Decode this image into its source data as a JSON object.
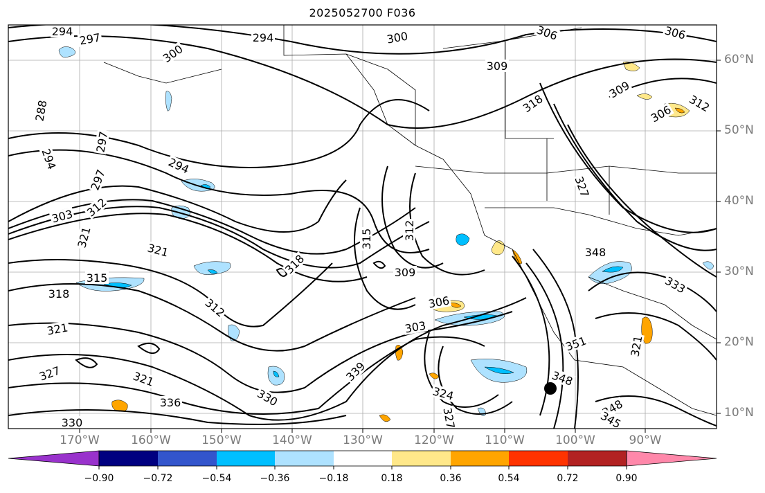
{
  "title": "2025052700 F036",
  "map": {
    "lat_labels": [
      "60°N",
      "50°N",
      "40°N",
      "30°N",
      "20°N",
      "10°N"
    ],
    "lon_labels": [
      "170°W",
      "160°W",
      "150°W",
      "140°W",
      "130°W",
      "120°W",
      "110°W",
      "100°W",
      "90°W"
    ],
    "contour_labels": [
      "294",
      "297",
      "300",
      "294",
      "300",
      "306",
      "306",
      "309",
      "309",
      "306",
      "318",
      "288",
      "294",
      "297",
      "294",
      "297",
      "303",
      "312",
      "321",
      "321",
      "318",
      "315",
      "312",
      "309",
      "306",
      "303",
      "312",
      "315",
      "318",
      "321",
      "321",
      "327",
      "336",
      "330",
      "339",
      "324",
      "327",
      "348",
      "351",
      "348",
      "345",
      "348",
      "333",
      "330",
      "321",
      "327",
      "312",
      "318"
    ]
  },
  "colorbar": {
    "colors": [
      "#9932cc",
      "#000080",
      "#3355cc",
      "#00bfff",
      "#aee2ff",
      "#ffffff",
      "#ffe88a",
      "#ffa500",
      "#ff3300",
      "#b22222",
      "#ff88aa"
    ],
    "tick_labels": [
      "−0.90",
      "−0.72",
      "−0.54",
      "−0.36",
      "−0.18",
      "0.18",
      "0.36",
      "0.54",
      "0.72",
      "0.90"
    ],
    "boundaries": [
      -0.9,
      -0.72,
      -0.54,
      -0.36,
      -0.18,
      0.18,
      0.36,
      0.54,
      0.72,
      0.9
    ],
    "extend": "both"
  }
}
